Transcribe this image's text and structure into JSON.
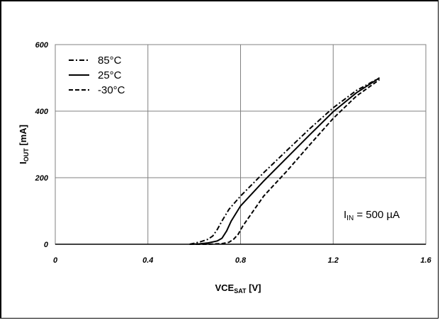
{
  "chart_data": {
    "type": "line",
    "xlabel": {
      "main": "VCE",
      "sub": "SAT",
      "unit": " [V]"
    },
    "ylabel": {
      "main": "I",
      "sub": "OUT",
      "unit": " [mA]"
    },
    "xlim": [
      0,
      1.6
    ],
    "ylim": [
      0,
      600
    ],
    "x_ticks": [
      "0",
      "0.4",
      "0.8",
      "1.2",
      "1.6"
    ],
    "y_ticks": [
      "0",
      "200",
      "400",
      "600"
    ],
    "x_tick_values": [
      0,
      0.4,
      0.8,
      1.2,
      1.6
    ],
    "y_tick_values": [
      0,
      200,
      400,
      600
    ],
    "grid": true,
    "legend_position": "top-left",
    "annotation": {
      "main": "I",
      "sub": "IN",
      "rest": " = 500 µA"
    },
    "series": [
      {
        "name": "85°C",
        "dash": "dashdot",
        "x": [
          0.58,
          0.6,
          0.63,
          0.66,
          0.68,
          0.7,
          0.72,
          0.75,
          0.8,
          0.9,
          1.0,
          1.1,
          1.2,
          1.3,
          1.4
        ],
        "y": [
          0,
          3,
          8,
          15,
          25,
          45,
          70,
          105,
          145,
          215,
          282,
          348,
          410,
          462,
          500
        ]
      },
      {
        "name": "25°C",
        "dash": "solid",
        "x": [
          0.58,
          0.62,
          0.66,
          0.7,
          0.72,
          0.74,
          0.76,
          0.8,
          0.9,
          1.0,
          1.1,
          1.2,
          1.3,
          1.4
        ],
        "y": [
          0,
          1,
          4,
          10,
          18,
          40,
          70,
          115,
          190,
          260,
          330,
          398,
          455,
          500
        ]
      },
      {
        "name": "-30°C",
        "dash": "dashed",
        "x": [
          0.58,
          0.66,
          0.72,
          0.75,
          0.77,
          0.79,
          0.81,
          0.85,
          0.9,
          1.0,
          1.1,
          1.2,
          1.3,
          1.4
        ],
        "y": [
          0,
          0,
          2,
          6,
          15,
          30,
          55,
          95,
          145,
          220,
          300,
          378,
          445,
          495
        ]
      }
    ]
  }
}
